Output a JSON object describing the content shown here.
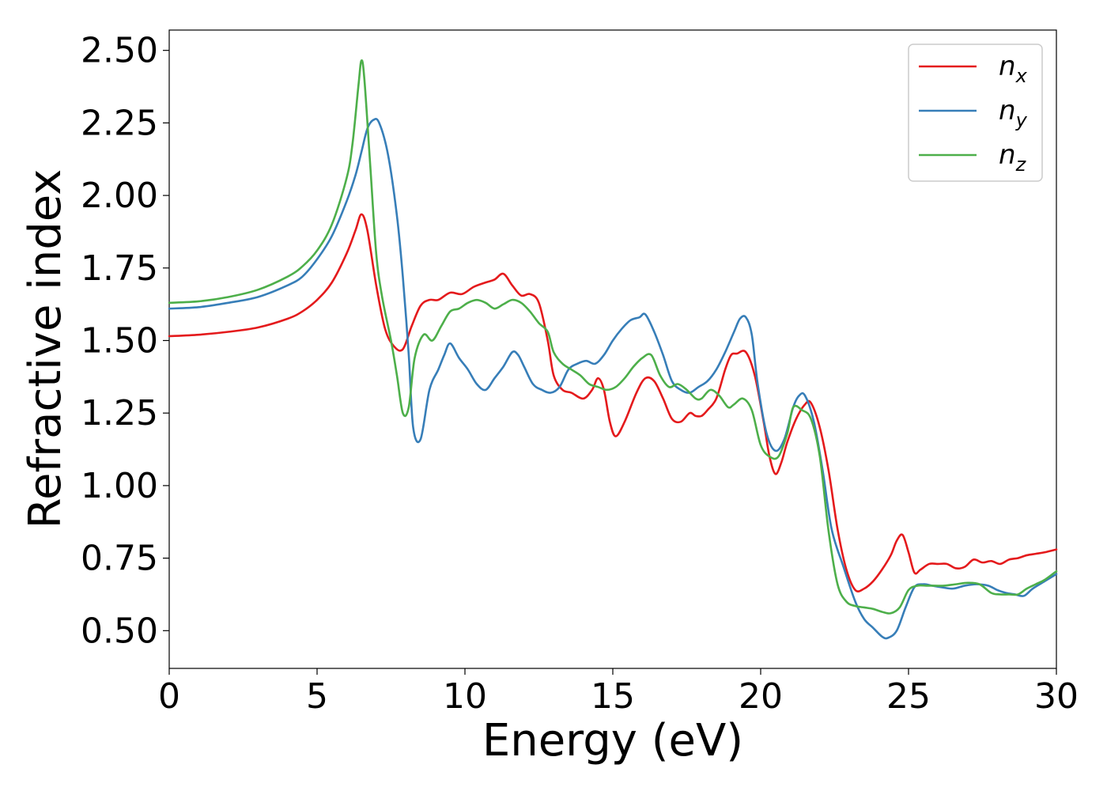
{
  "chart_data": {
    "type": "line",
    "xlabel": "Energy (eV)",
    "ylabel": "Refractive index",
    "xlim": [
      0,
      30
    ],
    "ylim": [
      0.37,
      2.57
    ],
    "xticks": [
      0,
      5,
      10,
      15,
      20,
      25,
      30
    ],
    "xtick_labels": [
      "0",
      "5",
      "10",
      "15",
      "20",
      "25",
      "30"
    ],
    "yticks": [
      0.5,
      0.75,
      1.0,
      1.25,
      1.5,
      1.75,
      2.0,
      2.25,
      2.5
    ],
    "ytick_labels": [
      "0.50",
      "0.75",
      "1.00",
      "1.25",
      "1.50",
      "1.75",
      "2.00",
      "2.25",
      "2.50"
    ],
    "grid": false,
    "legend_position": "top-right",
    "series": [
      {
        "name": "n_x",
        "label_base": "n",
        "label_sub": "x",
        "color": "#e41a1c",
        "x": [
          0,
          1,
          2,
          3,
          4,
          4.5,
          5,
          5.5,
          6,
          6.3,
          6.5,
          6.7,
          7,
          7.3,
          7.6,
          7.9,
          8.2,
          8.5,
          8.8,
          9.1,
          9.5,
          9.9,
          10.3,
          10.7,
          11.0,
          11.3,
          11.6,
          11.9,
          12.2,
          12.5,
          12.8,
          13.0,
          13.3,
          13.6,
          14.0,
          14.3,
          14.5,
          14.7,
          14.9,
          15.1,
          15.4,
          15.8,
          16.1,
          16.4,
          16.7,
          17.0,
          17.3,
          17.6,
          17.8,
          18.0,
          18.2,
          18.5,
          18.8,
          19.0,
          19.2,
          19.5,
          19.8,
          20.1,
          20.3,
          20.5,
          20.7,
          20.9,
          21.2,
          21.5,
          21.7,
          22.0,
          22.3,
          22.6,
          22.9,
          23.2,
          23.5,
          23.8,
          24.1,
          24.4,
          24.6,
          24.8,
          25.0,
          25.2,
          25.4,
          25.7,
          26.0,
          26.3,
          26.6,
          26.9,
          27.2,
          27.5,
          27.8,
          28.1,
          28.4,
          28.7,
          29.0,
          29.3,
          29.6,
          30
        ],
        "y": [
          1.515,
          1.52,
          1.53,
          1.545,
          1.575,
          1.6,
          1.64,
          1.7,
          1.8,
          1.88,
          1.935,
          1.88,
          1.69,
          1.54,
          1.48,
          1.47,
          1.55,
          1.62,
          1.64,
          1.64,
          1.665,
          1.66,
          1.685,
          1.7,
          1.71,
          1.73,
          1.69,
          1.655,
          1.66,
          1.63,
          1.5,
          1.38,
          1.33,
          1.32,
          1.3,
          1.33,
          1.37,
          1.33,
          1.22,
          1.17,
          1.22,
          1.32,
          1.37,
          1.36,
          1.3,
          1.23,
          1.22,
          1.25,
          1.24,
          1.24,
          1.26,
          1.3,
          1.4,
          1.45,
          1.455,
          1.46,
          1.38,
          1.22,
          1.1,
          1.04,
          1.08,
          1.15,
          1.23,
          1.28,
          1.285,
          1.2,
          1.05,
          0.85,
          0.71,
          0.64,
          0.645,
          0.67,
          0.71,
          0.76,
          0.81,
          0.83,
          0.77,
          0.7,
          0.71,
          0.73,
          0.73,
          0.73,
          0.715,
          0.72,
          0.745,
          0.735,
          0.74,
          0.73,
          0.745,
          0.75,
          0.76,
          0.765,
          0.77,
          0.78
        ]
      },
      {
        "name": "n_y",
        "label_base": "n",
        "label_sub": "y",
        "color": "#377eb8",
        "x": [
          0,
          1,
          2,
          3,
          4,
          4.5,
          5,
          5.5,
          6,
          6.3,
          6.5,
          6.7,
          6.9,
          7.1,
          7.4,
          7.7,
          7.9,
          8.1,
          8.25,
          8.5,
          8.8,
          9.1,
          9.3,
          9.5,
          9.8,
          10.1,
          10.4,
          10.7,
          11.0,
          11.3,
          11.6,
          11.8,
          12.0,
          12.3,
          12.6,
          12.9,
          13.2,
          13.5,
          13.8,
          14.1,
          14.4,
          14.7,
          15.0,
          15.3,
          15.6,
          15.9,
          16.1,
          16.4,
          16.7,
          17.0,
          17.3,
          17.6,
          17.9,
          18.2,
          18.5,
          18.8,
          19.1,
          19.3,
          19.5,
          19.7,
          19.9,
          20.2,
          20.5,
          20.8,
          21.1,
          21.3,
          21.5,
          21.8,
          22.1,
          22.4,
          22.8,
          23.2,
          23.5,
          23.8,
          24.1,
          24.3,
          24.6,
          24.9,
          25.2,
          25.5,
          25.8,
          26.1,
          26.5,
          26.9,
          27.3,
          27.7,
          28.0,
          28.3,
          28.6,
          28.9,
          29.2,
          29.6,
          30
        ],
        "y": [
          1.61,
          1.615,
          1.63,
          1.65,
          1.69,
          1.72,
          1.78,
          1.86,
          1.98,
          2.07,
          2.15,
          2.23,
          2.26,
          2.25,
          2.14,
          1.93,
          1.72,
          1.45,
          1.2,
          1.16,
          1.33,
          1.4,
          1.45,
          1.49,
          1.44,
          1.4,
          1.35,
          1.33,
          1.37,
          1.41,
          1.46,
          1.45,
          1.41,
          1.35,
          1.33,
          1.32,
          1.34,
          1.4,
          1.42,
          1.43,
          1.42,
          1.45,
          1.5,
          1.54,
          1.57,
          1.58,
          1.59,
          1.53,
          1.45,
          1.36,
          1.33,
          1.32,
          1.34,
          1.36,
          1.4,
          1.46,
          1.53,
          1.575,
          1.58,
          1.52,
          1.35,
          1.18,
          1.12,
          1.16,
          1.27,
          1.31,
          1.31,
          1.22,
          1.05,
          0.85,
          0.72,
          0.6,
          0.54,
          0.51,
          0.48,
          0.475,
          0.5,
          0.58,
          0.65,
          0.66,
          0.655,
          0.65,
          0.645,
          0.655,
          0.66,
          0.655,
          0.64,
          0.63,
          0.625,
          0.62,
          0.645,
          0.67,
          0.695
        ]
      },
      {
        "name": "n_z",
        "label_base": "n",
        "label_sub": "z",
        "color": "#4daf4a",
        "x": [
          0,
          1,
          2,
          3,
          4,
          4.5,
          5,
          5.5,
          6,
          6.2,
          6.4,
          6.5,
          6.6,
          6.8,
          7.0,
          7.2,
          7.5,
          7.7,
          7.9,
          8.1,
          8.3,
          8.6,
          8.9,
          9.2,
          9.5,
          9.8,
          10.1,
          10.4,
          10.7,
          11.0,
          11.3,
          11.6,
          11.9,
          12.2,
          12.5,
          12.8,
          13.0,
          13.3,
          13.6,
          13.9,
          14.2,
          14.5,
          14.8,
          15.1,
          15.4,
          15.7,
          16.0,
          16.3,
          16.6,
          16.9,
          17.2,
          17.5,
          17.8,
          18.0,
          18.3,
          18.6,
          18.9,
          19.1,
          19.4,
          19.7,
          20.0,
          20.3,
          20.6,
          20.9,
          21.1,
          21.4,
          21.7,
          22.0,
          22.3,
          22.6,
          22.9,
          23.2,
          23.5,
          23.8,
          24.1,
          24.4,
          24.7,
          25.0,
          25.3,
          25.6,
          25.9,
          26.2,
          26.6,
          27.0,
          27.4,
          27.8,
          28.1,
          28.4,
          28.7,
          29.0,
          29.3,
          29.6,
          30
        ],
        "y": [
          1.63,
          1.635,
          1.65,
          1.675,
          1.72,
          1.755,
          1.81,
          1.9,
          2.06,
          2.18,
          2.38,
          2.465,
          2.4,
          2.1,
          1.8,
          1.65,
          1.5,
          1.38,
          1.25,
          1.27,
          1.44,
          1.52,
          1.5,
          1.55,
          1.6,
          1.61,
          1.63,
          1.64,
          1.63,
          1.61,
          1.625,
          1.64,
          1.63,
          1.6,
          1.56,
          1.53,
          1.46,
          1.42,
          1.4,
          1.38,
          1.35,
          1.34,
          1.33,
          1.34,
          1.37,
          1.41,
          1.44,
          1.45,
          1.38,
          1.34,
          1.35,
          1.33,
          1.3,
          1.3,
          1.33,
          1.31,
          1.27,
          1.28,
          1.3,
          1.26,
          1.14,
          1.1,
          1.1,
          1.18,
          1.27,
          1.26,
          1.23,
          1.1,
          0.84,
          0.66,
          0.6,
          0.585,
          0.58,
          0.575,
          0.565,
          0.56,
          0.58,
          0.64,
          0.655,
          0.655,
          0.655,
          0.655,
          0.66,
          0.665,
          0.66,
          0.63,
          0.625,
          0.625,
          0.625,
          0.645,
          0.66,
          0.675,
          0.705
        ]
      }
    ]
  }
}
